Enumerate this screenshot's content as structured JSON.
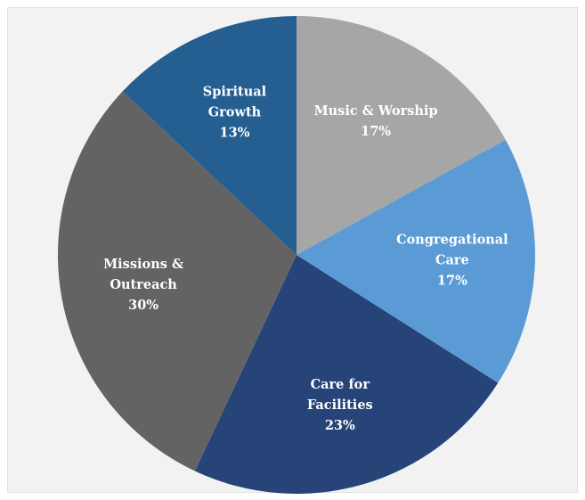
{
  "chart_data": {
    "type": "pie",
    "start_angle_deg": 0,
    "direction": "clockwise",
    "slices": [
      {
        "label": [
          "Music & Worship"
        ],
        "percent_label": "17%",
        "value": 17,
        "color": "#a6a6a6"
      },
      {
        "label": [
          "Congregational",
          "Care"
        ],
        "percent_label": "17%",
        "value": 17,
        "color": "#5b9bd5"
      },
      {
        "label": [
          "Care for",
          "Facilities"
        ],
        "percent_label": "23%",
        "value": 23,
        "color": "#264478"
      },
      {
        "label": [
          "Missions &",
          "Outreach"
        ],
        "percent_label": "30%",
        "value": 30,
        "color": "#636363"
      },
      {
        "label": [
          "Spiritual",
          "Growth"
        ],
        "percent_label": "13%",
        "value": 13,
        "color": "#255e91"
      }
    ],
    "legend": "none",
    "title": ""
  }
}
